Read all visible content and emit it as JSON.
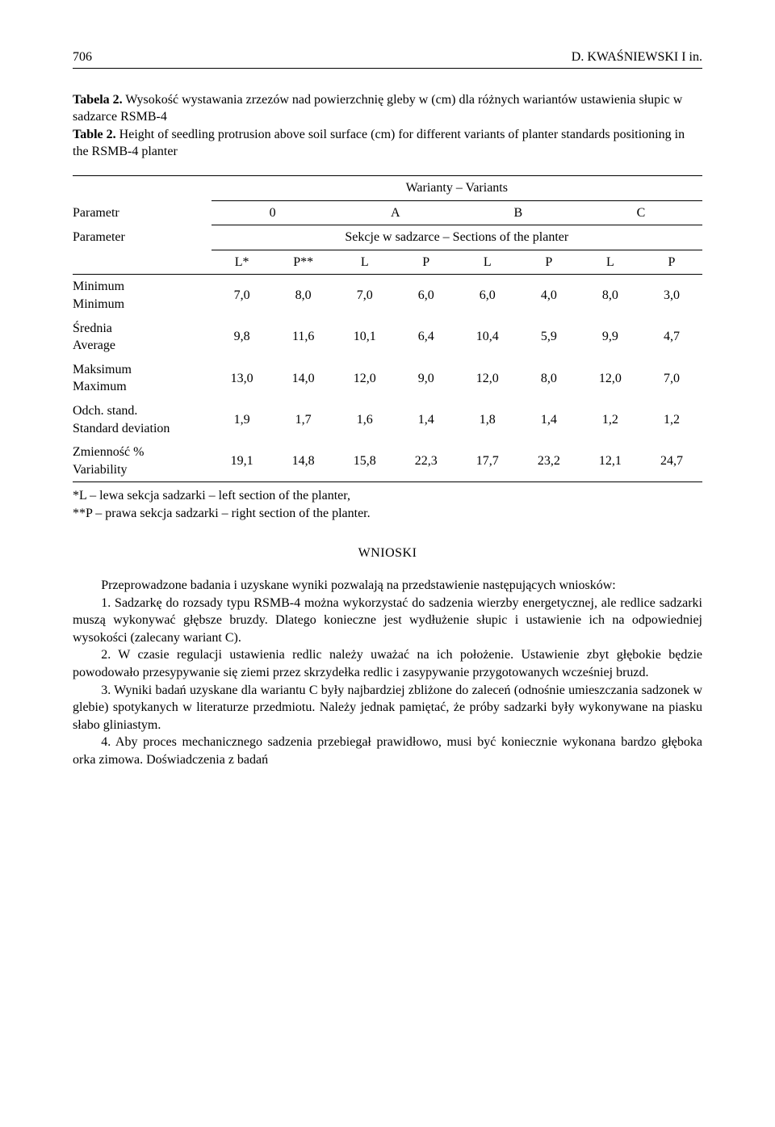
{
  "header": {
    "page_number": "706",
    "running_head": "D. KWAŚNIEWSKI I in."
  },
  "table": {
    "caption_pl_label": "Tabela 2.",
    "caption_pl_text": " Wysokość wystawania zrzezów nad powierzchnię gleby w (cm) dla różnych wariantów ustawienia słupic w sadzarce RSMB-4",
    "caption_en_label": "Table 2.",
    "caption_en_text": " Height of seedling protrusion above soil surface (cm) for different variants of planter standards positioning in the RSMB-4 planter",
    "header_variants": "Warianty – Variants",
    "header_param_pl": "Parametr",
    "header_param_en": "Parameter",
    "header_sections": "Sekcje w sadzarce – Sections of the planter",
    "variants": [
      "0",
      "A",
      "B",
      "C"
    ],
    "subcols": [
      "L*",
      "P**",
      "L",
      "P",
      "L",
      "P",
      "L",
      "P"
    ],
    "rows": [
      {
        "label_pl": "Minimum",
        "label_en": "Minimum",
        "values": [
          "7,0",
          "8,0",
          "7,0",
          "6,0",
          "6,0",
          "4,0",
          "8,0",
          "3,0"
        ]
      },
      {
        "label_pl": "Średnia",
        "label_en": "Average",
        "values": [
          "9,8",
          "11,6",
          "10,1",
          "6,4",
          "10,4",
          "5,9",
          "9,9",
          "4,7"
        ]
      },
      {
        "label_pl": "Maksimum",
        "label_en": "Maximum",
        "values": [
          "13,0",
          "14,0",
          "12,0",
          "9,0",
          "12,0",
          "8,0",
          "12,0",
          "7,0"
        ]
      },
      {
        "label_pl": "Odch. stand.",
        "label_en": "Standard deviation",
        "values": [
          "1,9",
          "1,7",
          "1,6",
          "1,4",
          "1,8",
          "1,4",
          "1,2",
          "1,2"
        ]
      },
      {
        "label_pl": "Zmienność %",
        "label_en": "Variability",
        "values": [
          "19,1",
          "14,8",
          "15,8",
          "22,3",
          "17,7",
          "23,2",
          "12,1",
          "24,7"
        ]
      }
    ],
    "footnote_l": "*L – lewa sekcja sadzarki – left section of the planter,",
    "footnote_p": "**P – prawa sekcja sadzarki –  right section of the planter."
  },
  "wnioski": {
    "heading": "WNIOSKI",
    "intro": "Przeprowadzone badania i uzyskane wyniki pozwalają na przedstawienie następujących wniosków:",
    "p1": "1. Sadzarkę do rozsady typu RSMB-4 można wykorzystać do sadzenia wierzby energetycznej, ale redlice sadzarki muszą wykonywać głębsze bruzdy. Dlatego konieczne jest wydłużenie słupic i ustawienie ich na odpowiedniej wysokości (zalecany wariant C).",
    "p2": "2. W czasie regulacji ustawienia redlic należy uważać na ich położenie. Ustawienie zbyt głębokie będzie powodowało przesypywanie się ziemi przez skrzydełka redlic i zasypywanie przygotowanych wcześniej bruzd.",
    "p3": "3. Wyniki badań uzyskane dla wariantu C były najbardziej zbliżone do zaleceń (odnośnie umieszczania sadzonek w glebie) spotykanych w literaturze przedmiotu. Należy jednak pamiętać, że próby sadzarki były wykonywane na piasku słabo gliniastym.",
    "p4": "4. Aby proces mechanicznego sadzenia przebiegał prawidłowo, musi być koniecznie wykonana bardzo głęboka orka zimowa. Doświadczenia z badań"
  }
}
